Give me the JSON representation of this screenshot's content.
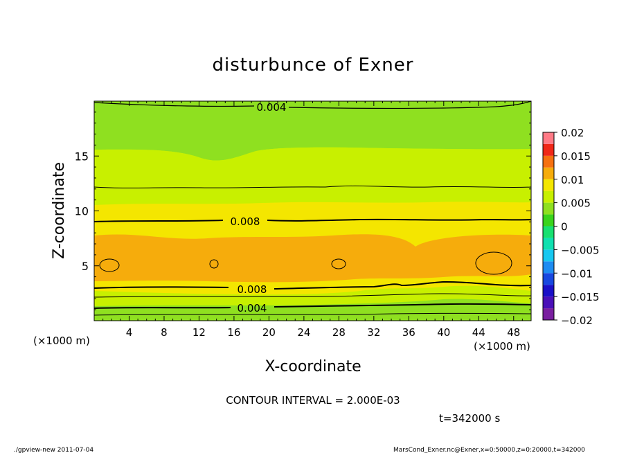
{
  "chart_data": {
    "type": "contour",
    "title": "disturbunce of Exner",
    "xlabel": "X-coordinate",
    "ylabel": "Z-coordinate",
    "x_unit": "(×1000 m)",
    "y_unit": "(×1000 m)",
    "xlim": [
      0,
      50
    ],
    "ylim": [
      0,
      20
    ],
    "x_ticks": [
      4,
      8,
      12,
      16,
      20,
      24,
      28,
      32,
      36,
      40,
      44,
      48
    ],
    "y_ticks": [
      5,
      10,
      15
    ],
    "contour_labels": [
      {
        "text": "0.004",
        "x": 22,
        "z": 19.5
      },
      {
        "text": "0.008",
        "x": 17,
        "z": 9.0
      },
      {
        "text": "0.008",
        "x": 18,
        "z": 2.8
      },
      {
        "text": "0.004",
        "x": 18,
        "z": 1.0
      }
    ],
    "colorbar": {
      "ticks": [
        "0.02",
        "0.015",
        "0.01",
        "0.005",
        "0",
        "−0.005",
        "−0.01",
        "−0.015",
        "−0.02"
      ],
      "range": [
        -0.02,
        0.02
      ],
      "levels": [
        {
          "from": -0.02,
          "to": -0.0175,
          "color": "#7a1fa0"
        },
        {
          "from": -0.0175,
          "to": -0.015,
          "color": "#4a10b8"
        },
        {
          "from": -0.015,
          "to": -0.0125,
          "color": "#1a10c8"
        },
        {
          "from": -0.0125,
          "to": -0.01,
          "color": "#1848e0"
        },
        {
          "from": -0.01,
          "to": -0.0075,
          "color": "#1e8cf2"
        },
        {
          "from": -0.0075,
          "to": -0.005,
          "color": "#18c8f0"
        },
        {
          "from": -0.005,
          "to": -0.0025,
          "color": "#10e0b0"
        },
        {
          "from": -0.0025,
          "to": 0,
          "color": "#18e070"
        },
        {
          "from": 0,
          "to": 0.0025,
          "color": "#3ad41c"
        },
        {
          "from": 0.0025,
          "to": 0.005,
          "color": "#8fe020"
        },
        {
          "from": 0.005,
          "to": 0.0075,
          "color": "#c8f000"
        },
        {
          "from": 0.0075,
          "to": 0.01,
          "color": "#f4e600"
        },
        {
          "from": 0.01,
          "to": 0.0125,
          "color": "#f6ac0c"
        },
        {
          "from": 0.0125,
          "to": 0.015,
          "color": "#f67010"
        },
        {
          "from": 0.015,
          "to": 0.0175,
          "color": "#f02818"
        },
        {
          "from": 0.0175,
          "to": 0.02,
          "color": "#ff7a86"
        }
      ]
    },
    "annotations": {
      "contour_interval": "CONTOUR INTERVAL = 2.000E-03",
      "time": "t=342000 s",
      "footer_left": "./gpview-new   2011-07-04",
      "footer_right": "MarsCond_Exner.nc@Exner,x=0:50000,z=0:20000,t=342000"
    }
  }
}
